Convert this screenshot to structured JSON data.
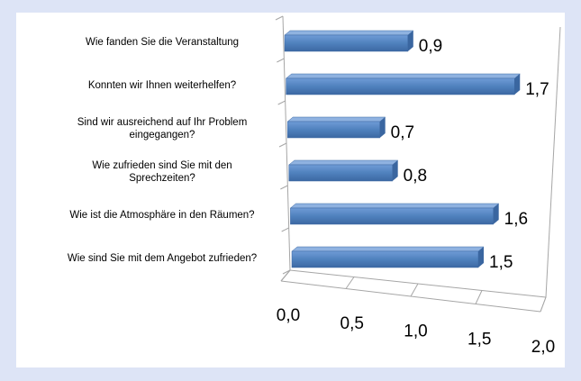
{
  "chart_data": {
    "type": "bar3d_horizontal",
    "categories": [
      "Wie fanden Sie die Veranstaltung",
      "Konnten wir Ihnen weiterhelfen?",
      "Sind wir ausreichend auf Ihr Problem eingegangen?",
      "Wie zufrieden sind Sie mit den Sprechzeiten?",
      "Wie ist die Atmosphäre in den Räumen?",
      "Wie sind Sie mit dem Angebot zufrieden?"
    ],
    "values": [
      0.9,
      1.7,
      0.7,
      0.8,
      1.6,
      1.5
    ],
    "value_labels": [
      "0,9",
      "1,7",
      "0,7",
      "0,8",
      "1,6",
      "1,5"
    ],
    "color": "#4f81bd",
    "xlim": [
      0,
      2
    ],
    "xticks": [
      {
        "value": 0,
        "label": "0,0"
      },
      {
        "value": 0.5,
        "label": "0,5"
      },
      {
        "value": 1,
        "label": "1,0"
      },
      {
        "value": 1.5,
        "label": "1,5"
      },
      {
        "value": 2,
        "label": "2,0"
      }
    ]
  }
}
